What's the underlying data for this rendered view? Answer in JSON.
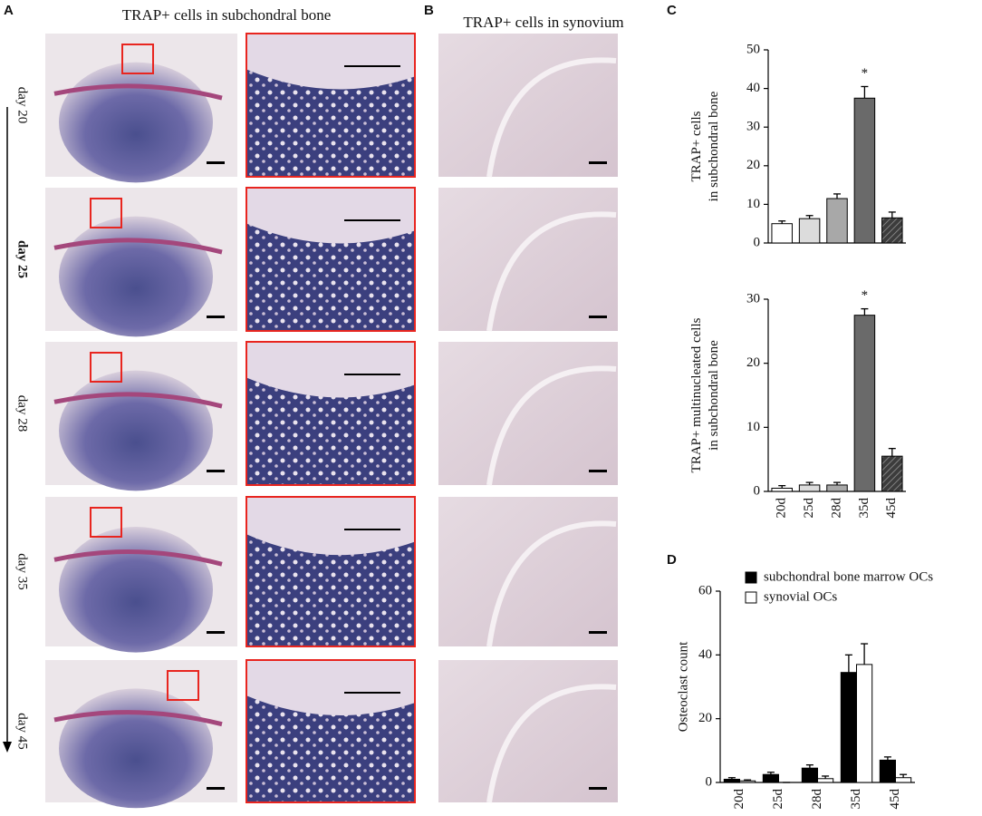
{
  "panels": {
    "a_label": "A",
    "a_title": "TRAP+ cells  in subchondral bone",
    "b_label": "B",
    "b_title": "TRAP+ cells in  synovium",
    "c_label": "C",
    "d_label": "D",
    "days": [
      {
        "text": "day 20",
        "color": "#111111"
      },
      {
        "text": "day 25",
        "color": "#e8251f"
      },
      {
        "text": "day 28",
        "color": "#111111"
      },
      {
        "text": "day 35",
        "color": "#111111"
      },
      {
        "text": "day 45",
        "color": "#111111"
      }
    ]
  },
  "chart_data": [
    {
      "type": "bar",
      "y_label": [
        "TRAP+ cells",
        "in subchondral bone"
      ],
      "annotation": "*",
      "categories": [
        null,
        null,
        null,
        null,
        null
      ],
      "values": [
        5,
        6.3,
        11.5,
        37.5,
        6.5
      ],
      "errors": [
        0.7,
        0.8,
        1.2,
        3,
        1.5
      ],
      "colors": [
        "#ffffff",
        "#dcdcdc",
        "#a8a8a8",
        "#6a6a6a",
        "#3c3c3c"
      ],
      "hatched": [
        false,
        false,
        false,
        false,
        true
      ],
      "ylim": [
        0,
        50
      ],
      "yticks": [
        0,
        10,
        20,
        30,
        40,
        50
      ]
    },
    {
      "type": "bar",
      "y_label": [
        "TRAP+ multinucleated cells",
        "in subchondral bone"
      ],
      "annotation": "*",
      "categories": [
        "20d",
        "25d",
        "28d",
        "35d",
        "45d"
      ],
      "category_colors": [
        "#111111",
        "#e8251f",
        "#111111",
        "#111111",
        "#111111"
      ],
      "values": [
        0.5,
        1,
        1,
        27.5,
        5.5
      ],
      "errors": [
        0.4,
        0.4,
        0.4,
        1,
        1.2
      ],
      "colors": [
        "#ffffff",
        "#dcdcdc",
        "#a8a8a8",
        "#6a6a6a",
        "#3c3c3c"
      ],
      "hatched": [
        false,
        false,
        false,
        false,
        true
      ],
      "ylim": [
        0,
        30
      ],
      "yticks": [
        0,
        10,
        20,
        30
      ]
    },
    {
      "type": "bar",
      "y_label": [
        "Osteoclast count"
      ],
      "categories": [
        "20d",
        "25d",
        "28d",
        "35d",
        "45d"
      ],
      "category_colors": [
        "#111111",
        "#e8251f",
        "#111111",
        "#111111",
        "#111111"
      ],
      "series": [
        {
          "name": "subchondral bone marrow OCs",
          "color": "#000000",
          "values": [
            1,
            2.5,
            4.5,
            34.5,
            7
          ],
          "errors": [
            0.5,
            0.7,
            1,
            5.5,
            1
          ]
        },
        {
          "name": "synovial OCs",
          "color": "#ffffff",
          "values": [
            0.5,
            0,
            1.2,
            37,
            1.5
          ],
          "errors": [
            0.3,
            0,
            0.8,
            6.5,
            1
          ]
        }
      ],
      "ylim": [
        0,
        60
      ],
      "yticks": [
        0,
        20,
        40,
        60
      ]
    }
  ]
}
